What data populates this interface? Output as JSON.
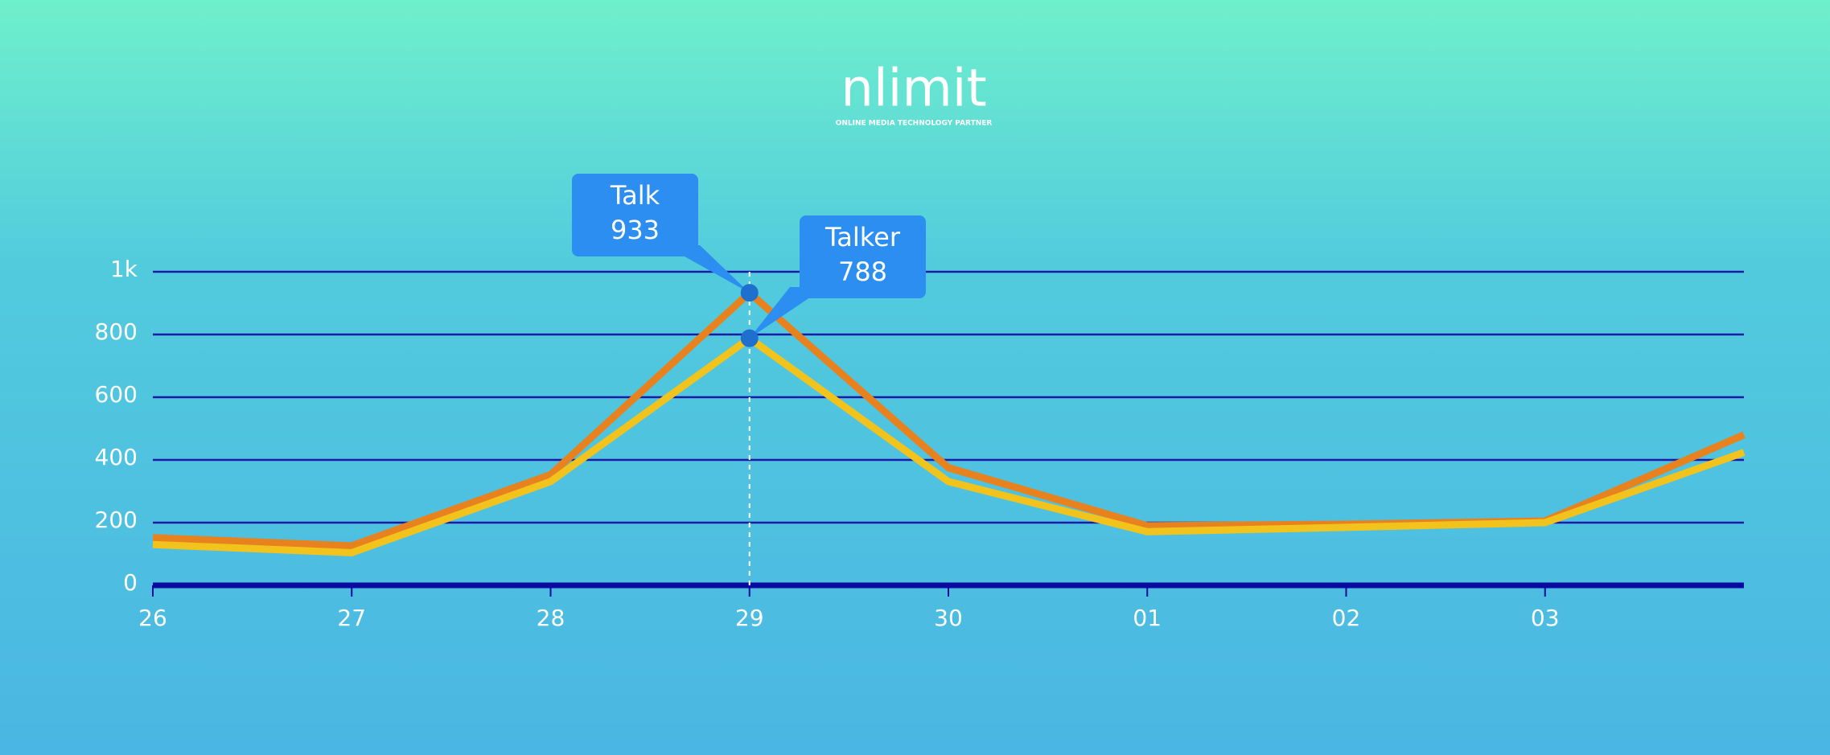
{
  "logo": {
    "name": "nlimit",
    "tagline": "ONLINE MEDIA TECHNOLOGY PARTNER"
  },
  "chart_data": {
    "type": "line",
    "categories": [
      "26",
      "27",
      "28",
      "29",
      "30",
      "01",
      "02",
      "03",
      null
    ],
    "series": [
      {
        "name": "Talk",
        "color": "#e8821e",
        "values": [
          152,
          126,
          353,
          933,
          375,
          190,
          195,
          205,
          480
        ]
      },
      {
        "name": "Talker",
        "color": "#f2c31c",
        "values": [
          130,
          104,
          331,
          788,
          331,
          171,
          185,
          200,
          424
        ]
      }
    ],
    "ylim": [
      0,
      1000
    ],
    "yticks": [
      0,
      200,
      400,
      600,
      800,
      {
        "value": 1000,
        "label": "1k"
      }
    ],
    "grid": true,
    "highlight_index": 3
  }
}
